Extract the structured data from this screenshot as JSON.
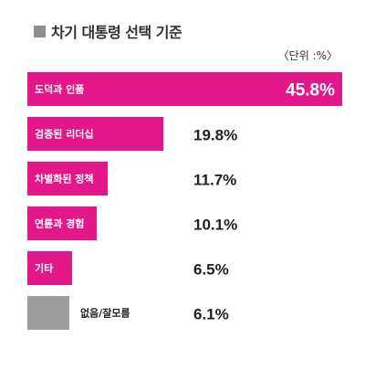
{
  "header": {
    "title": "차기 대통령 선택 기준",
    "unit": "〈단위 :%〉"
  },
  "colors": {
    "bar": "#e3168a",
    "bar_unknown": "#9e9e9e",
    "title_square": "#8e8e8e"
  },
  "chart_data": {
    "type": "bar",
    "orientation": "horizontal",
    "title": "차기 대통령 선택 기준",
    "unit": "%",
    "categories": [
      "도덕과 인품",
      "검증된 리더십",
      "차별화된 정책",
      "연륜과 경험",
      "기타",
      "없음/잘모름"
    ],
    "values": [
      45.8,
      19.8,
      11.7,
      10.1,
      6.5,
      6.1
    ],
    "value_labels": [
      "45.8%",
      "19.8%",
      "11.7%",
      "10.1%",
      "6.5%",
      "6.1%"
    ],
    "bar_colors": [
      "#e3168a",
      "#e3168a",
      "#e3168a",
      "#e3168a",
      "#e3168a",
      "#9e9e9e"
    ],
    "xlim": [
      0,
      45.8
    ],
    "grid": false,
    "legend": "none"
  }
}
